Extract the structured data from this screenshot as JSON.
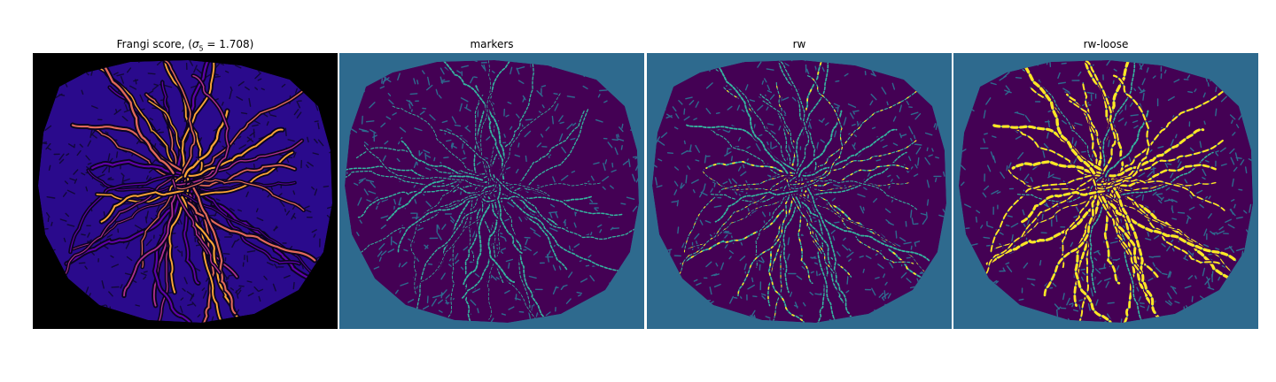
{
  "figure": {
    "panels": [
      {
        "title_prefix": "Frangi score, (",
        "title_symbol": "σ",
        "title_subscript": "5",
        "title_suffix": " = 1.708)",
        "background": "#000000",
        "colormap": "plasma",
        "vessel_colors": [
          "#2a0a8c",
          "#5f02a8",
          "#b1308e",
          "#e26a5a",
          "#fca636"
        ]
      },
      {
        "title": "markers",
        "background": "#2e6a8e",
        "colormap": "viridis",
        "vessel_colors": [
          "#440154",
          "#35b6a0"
        ]
      },
      {
        "title": "rw",
        "background": "#2e6a8e",
        "colormap": "viridis",
        "vessel_colors": [
          "#440154",
          "#35b6a0",
          "#fde725"
        ]
      },
      {
        "title": "rw-loose",
        "background": "#2e6a8e",
        "colormap": "viridis",
        "vessel_colors": [
          "#440154",
          "#35b6a0",
          "#fde725"
        ]
      }
    ]
  }
}
